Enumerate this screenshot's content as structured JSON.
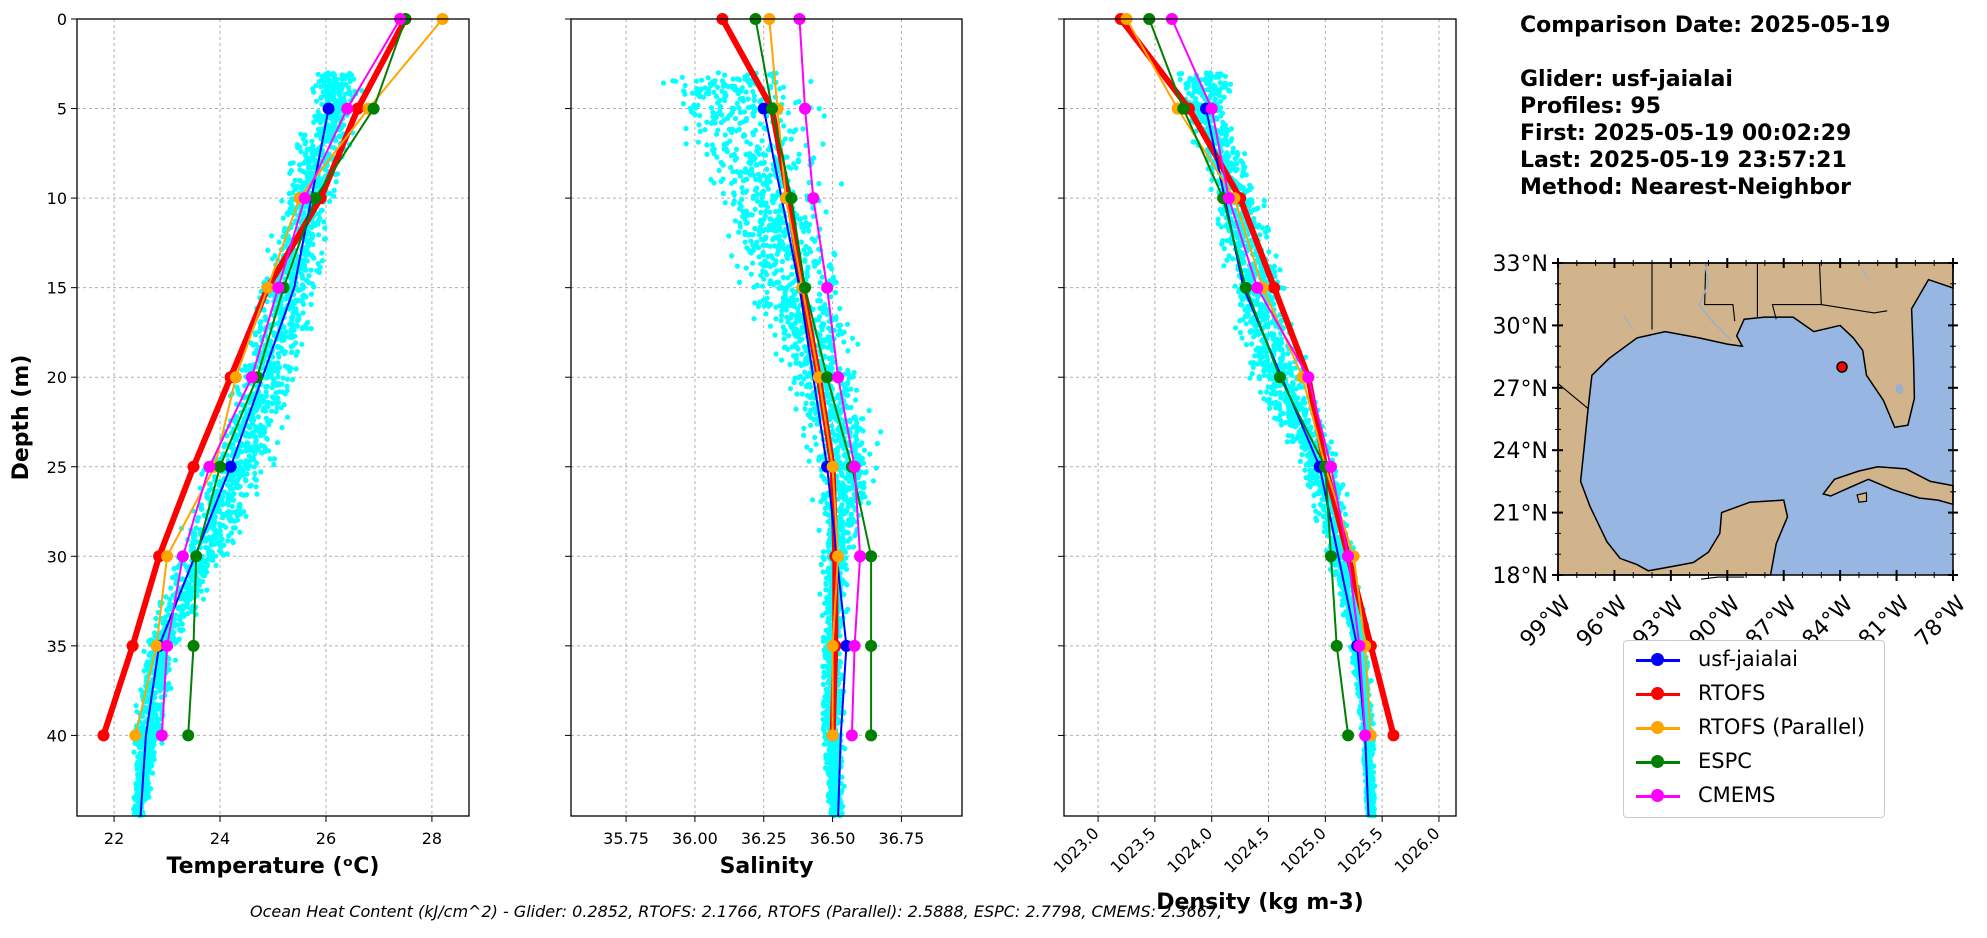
{
  "info": {
    "comparison_date": "Comparison Date: 2025-05-19",
    "glider": "Glider: usf-jaialai",
    "profiles": "Profiles: 95",
    "first": "First: 2025-05-19 00:02:29",
    "last": "Last: 2025-05-19 23:57:21",
    "method": "Method: Nearest-Neighbor"
  },
  "footer_text": "Ocean Heat Content (kJ/cm^2) - Glider: 0.2852,  RTOFS: 2.1766,  RTOFS (Parallel): 2.5888,  ESPC: 2.7798,  CMEMS: 2.3667,",
  "colors": {
    "glider": "#0000ff",
    "rtofs": "#ff0000",
    "rtofs_parallel": "#ffa500",
    "espc": "#008000",
    "cmems": "#ff00ff",
    "scatter": "#00ffff",
    "land": "#d2b48c",
    "ocean": "#97b6e1",
    "marker": "#ff0000"
  },
  "legend": [
    {
      "key": "glider",
      "label": "usf-jaialai"
    },
    {
      "key": "rtofs",
      "label": "RTOFS"
    },
    {
      "key": "rtofs_parallel",
      "label": "RTOFS (Parallel)"
    },
    {
      "key": "espc",
      "label": "ESPC"
    },
    {
      "key": "cmems",
      "label": "CMEMS"
    }
  ],
  "chart_data": [
    {
      "type": "line",
      "xlabel": "Temperature (ᵒC)",
      "ylabel": "Depth (m)",
      "xlim": [
        21.3,
        28.7
      ],
      "ylim": [
        44.5,
        0
      ],
      "xticks": [
        "22",
        "24",
        "26",
        "28"
      ],
      "xtick_values": [
        22,
        24,
        26,
        28
      ],
      "yticks": [
        "0",
        "5",
        "10",
        "15",
        "20",
        "25",
        "30",
        "35",
        "40"
      ],
      "grid": true,
      "scatter": {
        "name": "glider profiles",
        "x_range_by_depth": [
          [
            3,
            25.6,
            26.8
          ],
          [
            5,
            25.5,
            26.8
          ],
          [
            10,
            25.0,
            26.3
          ],
          [
            15,
            24.6,
            26.0
          ],
          [
            20,
            24.1,
            25.6
          ],
          [
            25,
            23.6,
            25.1
          ],
          [
            30,
            23.0,
            24.3
          ],
          [
            35,
            22.5,
            23.3
          ],
          [
            40,
            22.3,
            23.0
          ],
          [
            44.5,
            22.3,
            22.6
          ]
        ]
      },
      "series": [
        {
          "name": "usf-jaialai",
          "key": "glider",
          "marker_depths": [
            5,
            25,
            35
          ],
          "x": [
            26.05,
            25.4,
            24.2,
            22.85,
            22.6,
            22.5
          ],
          "y": [
            5,
            15,
            25,
            35,
            40,
            44.5
          ]
        },
        {
          "name": "RTOFS",
          "key": "rtofs",
          "width": 6,
          "x": [
            27.5,
            26.6,
            25.9,
            24.9,
            24.2,
            23.5,
            22.85,
            22.35,
            21.8
          ],
          "y": [
            0,
            5,
            10,
            15,
            20,
            25,
            30,
            35,
            40
          ]
        },
        {
          "name": "RTOFS (Parallel)",
          "key": "rtofs_parallel",
          "x": [
            28.2,
            26.8,
            25.5,
            24.9,
            24.3,
            23.9,
            23.0,
            22.8,
            22.4
          ],
          "y": [
            0,
            5,
            10,
            15,
            20,
            25,
            30,
            35,
            40
          ]
        },
        {
          "name": "ESPC",
          "key": "espc",
          "x": [
            27.5,
            26.9,
            25.8,
            25.2,
            24.7,
            24.0,
            23.55,
            23.5,
            23.4
          ],
          "y": [
            0,
            5,
            10,
            15,
            20,
            25,
            30,
            35,
            40
          ]
        },
        {
          "name": "CMEMS",
          "key": "cmems",
          "x": [
            27.4,
            26.4,
            25.6,
            25.1,
            24.6,
            23.8,
            23.3,
            23.0,
            22.9
          ],
          "y": [
            0,
            5,
            10,
            15,
            20,
            25,
            30,
            35,
            40
          ]
        }
      ]
    },
    {
      "type": "line",
      "xlabel": "Salinity",
      "xlim": [
        35.55,
        36.97
      ],
      "ylim": [
        44.5,
        0
      ],
      "xticks": [
        "35.75",
        "36.00",
        "36.25",
        "36.50",
        "36.75"
      ],
      "xtick_values": [
        35.75,
        36.0,
        36.25,
        36.5,
        36.75
      ],
      "grid": true,
      "scatter": {
        "name": "glider profiles",
        "x_range_by_depth": [
          [
            3,
            35.85,
            36.45
          ],
          [
            5,
            35.8,
            36.5
          ],
          [
            10,
            36.0,
            36.55
          ],
          [
            15,
            36.1,
            36.6
          ],
          [
            20,
            36.3,
            36.65
          ],
          [
            25,
            36.4,
            36.7
          ],
          [
            30,
            36.45,
            36.58
          ],
          [
            35,
            36.45,
            36.55
          ],
          [
            40,
            36.45,
            36.55
          ],
          [
            44.5,
            36.48,
            36.55
          ]
        ]
      },
      "series": [
        {
          "name": "usf-jaialai",
          "key": "glider",
          "marker_depths": [
            5,
            25,
            35
          ],
          "x": [
            36.25,
            36.38,
            36.48,
            36.55,
            36.53,
            36.52
          ],
          "y": [
            5,
            15,
            25,
            35,
            40,
            44.5
          ]
        },
        {
          "name": "RTOFS",
          "key": "rtofs",
          "width": 6,
          "x": [
            36.1,
            36.28,
            36.34,
            36.39,
            36.45,
            36.5,
            36.51,
            36.51,
            36.5
          ],
          "y": [
            0,
            5,
            10,
            15,
            20,
            25,
            30,
            35,
            40
          ]
        },
        {
          "name": "RTOFS (Parallel)",
          "key": "rtofs_parallel",
          "x": [
            36.27,
            36.3,
            36.33,
            36.39,
            36.45,
            36.5,
            36.52,
            36.5,
            36.5
          ],
          "y": [
            0,
            5,
            10,
            15,
            20,
            25,
            30,
            35,
            40
          ]
        },
        {
          "name": "ESPC",
          "key": "espc",
          "x": [
            36.22,
            36.28,
            36.35,
            36.4,
            36.48,
            36.57,
            36.64,
            36.64,
            36.64
          ],
          "y": [
            0,
            5,
            10,
            15,
            20,
            25,
            30,
            35,
            40
          ]
        },
        {
          "name": "CMEMS",
          "key": "cmems",
          "x": [
            36.38,
            36.4,
            36.43,
            36.48,
            36.52,
            36.58,
            36.6,
            36.58,
            36.57
          ],
          "y": [
            0,
            5,
            10,
            15,
            20,
            25,
            30,
            35,
            40
          ]
        }
      ]
    },
    {
      "type": "line",
      "xlabel": "Density (kg m-3)",
      "xlim": [
        1022.7,
        1026.15
      ],
      "ylim": [
        44.5,
        0
      ],
      "xticks": [
        "1023.0",
        "1023.5",
        "1024.0",
        "1024.5",
        "1025.0",
        "1025.5",
        "1026.0"
      ],
      "xtick_values": [
        1023.0,
        1023.5,
        1024.0,
        1024.5,
        1025.0,
        1025.5,
        1026.0
      ],
      "grid": true,
      "scatter": {
        "name": "glider profiles",
        "x_range_by_depth": [
          [
            3,
            1023.6,
            1024.3
          ],
          [
            5,
            1023.7,
            1024.2
          ],
          [
            10,
            1023.9,
            1024.5
          ],
          [
            15,
            1024.1,
            1024.7
          ],
          [
            20,
            1024.3,
            1024.9
          ],
          [
            25,
            1024.7,
            1025.2
          ],
          [
            30,
            1025.0,
            1025.3
          ],
          [
            35,
            1025.2,
            1025.4
          ],
          [
            40,
            1025.3,
            1025.45
          ],
          [
            44.5,
            1025.35,
            1025.45
          ]
        ]
      },
      "series": [
        {
          "name": "usf-jaialai",
          "key": "glider",
          "marker_depths": [
            5,
            25,
            35
          ],
          "x": [
            1023.95,
            1024.28,
            1024.95,
            1025.28,
            1025.35,
            1025.38
          ],
          "y": [
            5,
            15,
            25,
            35,
            40,
            44.5
          ]
        },
        {
          "name": "RTOFS",
          "key": "rtofs",
          "width": 6,
          "x": [
            1023.2,
            1023.8,
            1024.25,
            1024.55,
            1024.85,
            1025.0,
            1025.2,
            1025.4,
            1025.6
          ],
          "y": [
            0,
            5,
            10,
            15,
            20,
            25,
            30,
            35,
            40
          ]
        },
        {
          "name": "RTOFS (Parallel)",
          "key": "rtofs_parallel",
          "x": [
            1023.25,
            1023.7,
            1024.2,
            1024.45,
            1024.8,
            1025.0,
            1025.25,
            1025.35,
            1025.4
          ],
          "y": [
            0,
            5,
            10,
            15,
            20,
            25,
            30,
            35,
            40
          ]
        },
        {
          "name": "ESPC",
          "key": "espc",
          "x": [
            1023.45,
            1023.75,
            1024.1,
            1024.3,
            1024.6,
            1025.0,
            1025.05,
            1025.1,
            1025.2
          ],
          "y": [
            0,
            5,
            10,
            15,
            20,
            25,
            30,
            35,
            40
          ]
        },
        {
          "name": "CMEMS",
          "key": "cmems",
          "x": [
            1023.65,
            1024.0,
            1024.15,
            1024.4,
            1024.85,
            1025.05,
            1025.2,
            1025.3,
            1025.35
          ],
          "y": [
            0,
            5,
            10,
            15,
            20,
            25,
            30,
            35,
            40
          ]
        }
      ]
    }
  ],
  "map": {
    "lon_range": [
      -99,
      -78
    ],
    "lat_range": [
      18,
      33
    ],
    "lat_labels": [
      "33°N",
      "30°N",
      "27°N",
      "24°N",
      "21°N",
      "18°N"
    ],
    "lon_labels": [
      "99°W",
      "96°W",
      "93°W",
      "90°W",
      "87°W",
      "84°W",
      "81°W",
      "78°W"
    ],
    "glider_position": {
      "lon": -83.9,
      "lat": 28.0
    }
  }
}
